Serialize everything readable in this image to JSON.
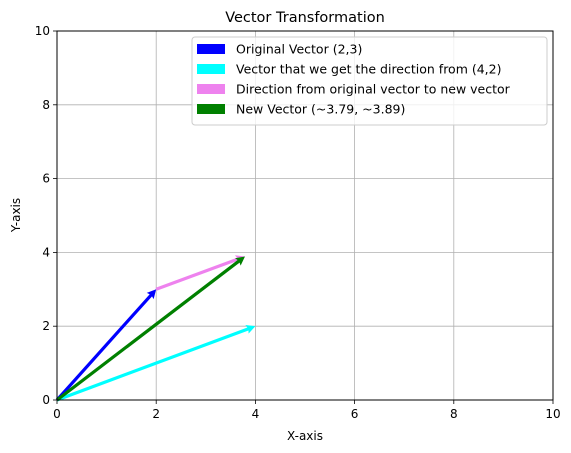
{
  "chart_data": {
    "type": "vector",
    "title": "Vector Transformation",
    "xlabel": "X-axis",
    "ylabel": "Y-axis",
    "xlim": [
      0,
      10
    ],
    "ylim": [
      0,
      10
    ],
    "xticks": [
      "0",
      "2",
      "4",
      "6",
      "8",
      "10"
    ],
    "yticks": [
      "0",
      "2",
      "4",
      "6",
      "8",
      "10"
    ],
    "grid": true,
    "legend_position": "top-right",
    "series": [
      {
        "name": "Original Vector (2,3)",
        "color": "#0000ff",
        "start": [
          0,
          0
        ],
        "end": [
          2,
          3
        ]
      },
      {
        "name": "Vector that we get the direction from (4,2)",
        "color": "#00ffff",
        "start": [
          0,
          0
        ],
        "end": [
          4,
          2
        ]
      },
      {
        "name": "Direction from original vector to new vector",
        "color": "#ee82ee",
        "start": [
          2,
          3
        ],
        "end": [
          3.79,
          3.89
        ]
      },
      {
        "name": "New Vector (~3.79, ~3.89)",
        "color": "#008000",
        "start": [
          0,
          0
        ],
        "end": [
          3.79,
          3.89
        ]
      }
    ]
  }
}
